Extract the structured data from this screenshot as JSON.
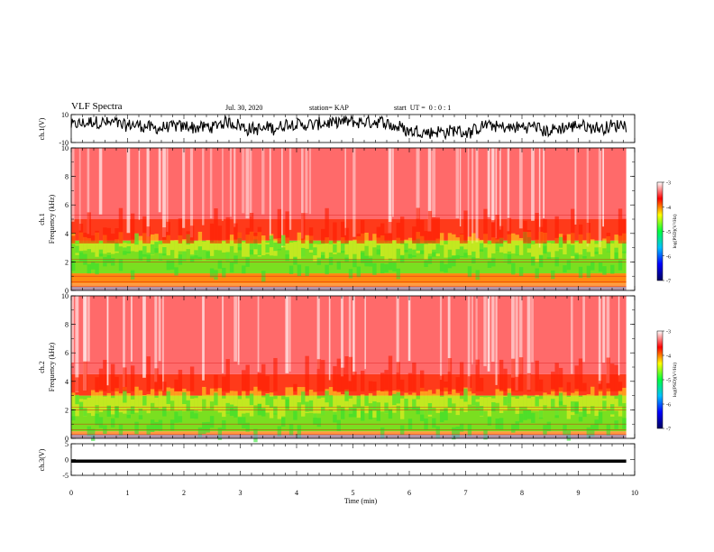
{
  "header": {
    "title": "VLF Spectra",
    "date": "Jul. 30, 2020",
    "station": "station= KAP",
    "start": "start  UT =  0 : 0 : 1"
  },
  "chart_data": [
    {
      "type": "line",
      "name": "ch1-waveform",
      "ylabel": "ch.1(V)",
      "ylim": [
        -10,
        10
      ],
      "y_ticks": [
        "10",
        "-10"
      ],
      "xlim": [
        0,
        10
      ],
      "data_end_min": 9.85,
      "description_visible": "dense black trace, mostly between -5 and 8",
      "line_color": "#000000"
    },
    {
      "type": "heatmap",
      "name": "ch1-spectrogram",
      "ylabel_channel": "ch.1",
      "ylabel": "Frequency (kHz)",
      "ylim": [
        0,
        10
      ],
      "y_ticks": [
        "0",
        "2",
        "4",
        "6",
        "8",
        "10"
      ],
      "xlim": [
        0,
        10
      ],
      "data_end_min": 9.85,
      "bands_khz": [
        {
          "from": 0,
          "to": 0.5,
          "level": "yellow-red"
        },
        {
          "from": 0.5,
          "to": 1.2,
          "level": "orange"
        },
        {
          "from": 1.2,
          "to": 3.5,
          "level": "green"
        },
        {
          "from": 3.5,
          "to": 5.0,
          "level": "orange-red"
        },
        {
          "from": 5.0,
          "to": 10,
          "level": "light-red"
        }
      ]
    },
    {
      "type": "heatmap",
      "name": "ch2-spectrogram",
      "ylabel_channel": "ch.2",
      "ylabel": "Frequency (kHz)",
      "ylim": [
        0,
        10
      ],
      "y_ticks": [
        "0",
        "2",
        "4",
        "6",
        "8",
        "10"
      ],
      "xlim": [
        0,
        10
      ],
      "data_end_min": 9.85,
      "bands_khz": [
        {
          "from": 0,
          "to": 0.5,
          "level": "yellow-red"
        },
        {
          "from": 0.5,
          "to": 3.0,
          "level": "green"
        },
        {
          "from": 3.0,
          "to": 4.5,
          "level": "orange-red"
        },
        {
          "from": 4.5,
          "to": 10,
          "level": "light-red"
        }
      ]
    },
    {
      "type": "line",
      "name": "ch3-waveform",
      "ylabel": "ch.3(V)",
      "ylim": [
        -5,
        5
      ],
      "y_ticks": [
        "5",
        "0",
        "-5"
      ],
      "xlim": [
        0,
        10
      ],
      "data_end_min": 9.85,
      "level_band": [
        -1,
        0
      ],
      "line_color": "#000000"
    }
  ],
  "x_axis": {
    "label": "Time (min)",
    "ticks": [
      "0",
      "1",
      "2",
      "3",
      "4",
      "5",
      "6",
      "7",
      "8",
      "9",
      "10"
    ]
  },
  "colorbar": {
    "label": "log(PSD)(V²/Hz)",
    "ticks": [
      "-3",
      "-4",
      "-5",
      "-6",
      "-7"
    ],
    "range": [
      -7,
      -3
    ],
    "colors": [
      "#000060",
      "#0000ff",
      "#00c0ff",
      "#00ff40",
      "#ffff00",
      "#ff0000",
      "#ffffff"
    ]
  }
}
